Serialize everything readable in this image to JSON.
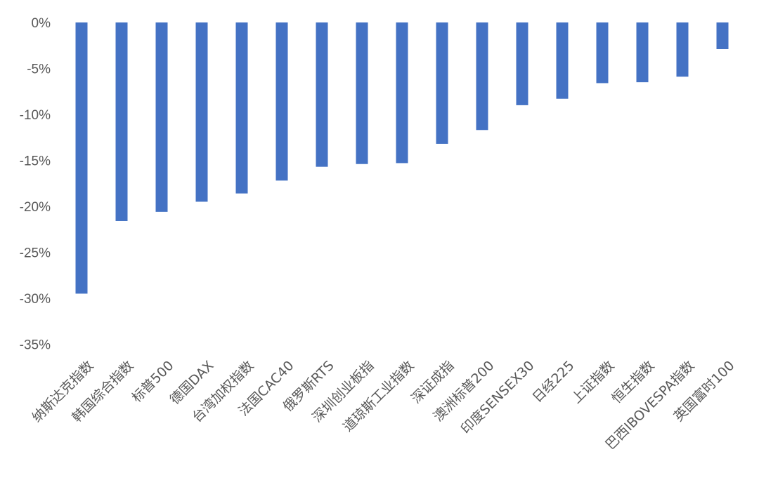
{
  "chart_data": {
    "type": "bar",
    "title": "",
    "xlabel": "",
    "ylabel": "",
    "ylim": [
      -35,
      0
    ],
    "y_ticks": [
      0,
      -5,
      -10,
      -15,
      -20,
      -25,
      -30,
      -35
    ],
    "y_tick_suffix": "%",
    "grid": false,
    "bar_color": "#4472C4",
    "categories": [
      "纳斯达克指数",
      "韩国综合指数",
      "标普500",
      "德国DAX",
      "台湾加权指数",
      "法国CAC40",
      "俄罗斯RTS",
      "深圳创业板指",
      "道琼斯工业指数",
      "深证成指",
      "澳洲标普200",
      "印度SENSEX30",
      "日经225",
      "上证指数",
      "恒生指数",
      "巴西IBOVESPA指数",
      "英国富时100"
    ],
    "values": [
      -29.5,
      -21.6,
      -20.6,
      -19.5,
      -18.6,
      -17.2,
      -15.7,
      -15.4,
      -15.3,
      -13.2,
      -11.7,
      -9.0,
      -8.3,
      -6.6,
      -6.5,
      -5.9,
      -2.9
    ]
  }
}
